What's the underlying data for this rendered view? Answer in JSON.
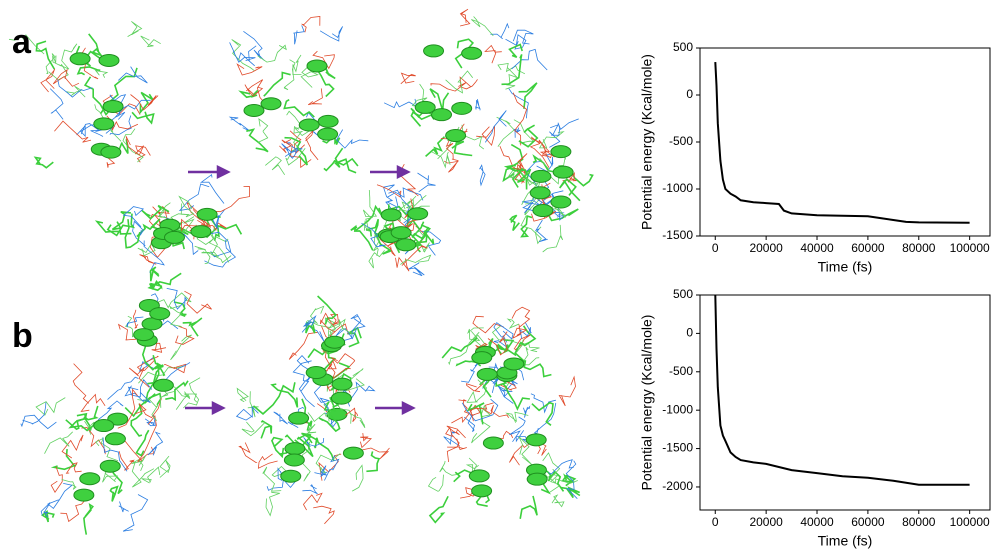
{
  "panel_labels": [
    "a",
    "b"
  ],
  "chart_data": [
    {
      "type": "line",
      "xlabel": "Time (fs)",
      "ylabel": "Potential energy (Kcal/mole)",
      "xlim": [
        -6000,
        108000
      ],
      "ylim": [
        -1500,
        500
      ],
      "xticks": [
        0,
        20000,
        40000,
        60000,
        80000,
        100000
      ],
      "yticks": [
        500,
        0,
        -500,
        -1000,
        -1500
      ],
      "series": [
        {
          "color": "#000000",
          "x": [
            0,
            500,
            1000,
            2000,
            3000,
            4000,
            6000,
            8000,
            10000,
            15000,
            20000,
            25000,
            27000,
            30000,
            40000,
            50000,
            60000,
            65000,
            70000,
            75000,
            80000,
            100000
          ],
          "values": [
            350,
            100,
            -300,
            -700,
            -900,
            -1000,
            -1050,
            -1080,
            -1120,
            -1140,
            -1150,
            -1160,
            -1230,
            -1260,
            -1280,
            -1285,
            -1290,
            -1310,
            -1330,
            -1350,
            -1355,
            -1360
          ]
        }
      ]
    },
    {
      "type": "line",
      "xlabel": "Time (fs)",
      "ylabel": "Potential energy (Kcal/mole)",
      "xlim": [
        -6000,
        108000
      ],
      "ylim": [
        -2300,
        500
      ],
      "xticks": [
        0,
        20000,
        40000,
        60000,
        80000,
        100000
      ],
      "yticks": [
        500,
        0,
        -500,
        -1000,
        -1500,
        -2000
      ],
      "series": [
        {
          "color": "#000000",
          "x": [
            0,
            500,
            1000,
            2000,
            3000,
            4000,
            6000,
            8000,
            10000,
            15000,
            20000,
            30000,
            40000,
            50000,
            60000,
            70000,
            80000,
            100000
          ],
          "values": [
            500,
            -200,
            -700,
            -1200,
            -1330,
            -1400,
            -1550,
            -1610,
            -1650,
            -1680,
            -1700,
            -1780,
            -1820,
            -1860,
            -1880,
            -1920,
            -1970,
            -1970
          ]
        }
      ]
    }
  ]
}
